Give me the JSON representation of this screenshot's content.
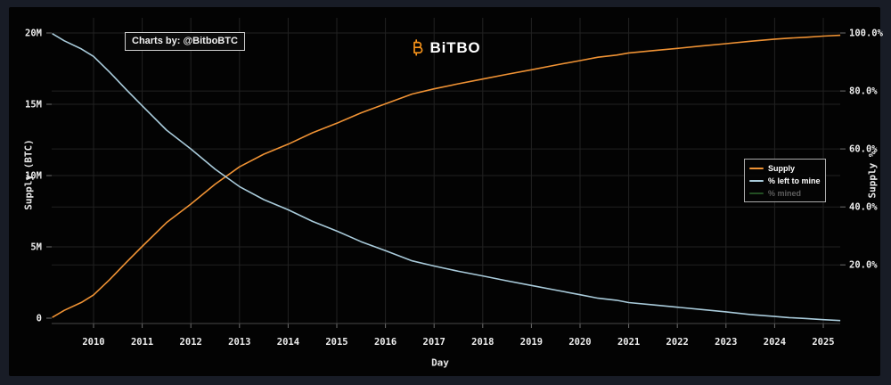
{
  "branding": {
    "logo_text": "BiTBO",
    "logo_icon": "bitcoin-b-icon",
    "credit": "Charts by: @BitboBTC"
  },
  "colors": {
    "background_outer": "#181c26",
    "background_panel": "#030303",
    "accent_orange": "#f7931a",
    "gridline": "#212121",
    "tick_text": "#ececec"
  },
  "chart_data": {
    "type": "line",
    "title": "",
    "xlabel": "Day",
    "ylabel_left": "Supply (BTC)",
    "ylabel_right": "Supply %",
    "grid": true,
    "legend_position": "middle-right",
    "x_range_years": [
      2009.15,
      2025.35
    ],
    "ylim_left_btc_millions": [
      0,
      20
    ],
    "ylim_right_pct": [
      0,
      100
    ],
    "x_tick_labels": [
      "2010",
      "2011",
      "2012",
      "2013",
      "2014",
      "2015",
      "2016",
      "2017",
      "2018",
      "2019",
      "2020",
      "2021",
      "2022",
      "2023",
      "2024",
      "2025"
    ],
    "y_ticks_left": {
      "labels": [
        "0",
        "5M",
        "10M",
        "15M",
        "20M"
      ],
      "values": [
        0,
        5,
        10,
        15,
        20
      ]
    },
    "y_ticks_right": {
      "labels": [
        "20.0%",
        "40.0%",
        "60.0%",
        "80.0%",
        "100.0%"
      ],
      "values": [
        20,
        40,
        60,
        80,
        100
      ]
    },
    "x": [
      2009.15,
      2009.4,
      2009.75,
      2010,
      2010.33,
      2010.67,
      2011,
      2011.5,
      2012,
      2012.5,
      2013,
      2013.5,
      2014,
      2014.5,
      2015,
      2015.5,
      2016,
      2016.55,
      2017,
      2017.5,
      2018,
      2018.5,
      2019,
      2019.5,
      2020,
      2020.37,
      2020.75,
      2021,
      2021.5,
      2022,
      2022.5,
      2023,
      2023.5,
      2024,
      2024.3,
      2024.65,
      2025,
      2025.35
    ],
    "series": [
      {
        "name": "Supply",
        "axis": "left",
        "unit": "million BTC",
        "color": "#ef9234",
        "visible": true,
        "values": [
          0.05,
          0.55,
          1.1,
          1.63,
          2.7,
          3.9,
          5.03,
          6.7,
          8.0,
          9.4,
          10.61,
          11.5,
          12.2,
          13.0,
          13.67,
          14.4,
          15.03,
          15.72,
          16.08,
          16.44,
          16.77,
          17.1,
          17.42,
          17.75,
          18.06,
          18.3,
          18.45,
          18.6,
          18.76,
          18.92,
          19.09,
          19.25,
          19.42,
          19.57,
          19.64,
          19.7,
          19.78,
          19.84
        ]
      },
      {
        "name": "% left to mine",
        "axis": "right",
        "unit": "%",
        "color": "#a9cbdb",
        "visible": true,
        "values": [
          99.8,
          97.3,
          94.5,
          91.9,
          86.5,
          80.5,
          74.9,
          66.5,
          60.0,
          53.0,
          47.0,
          42.5,
          39.0,
          35.0,
          31.7,
          28.0,
          24.9,
          21.4,
          19.6,
          17.8,
          16.2,
          14.5,
          12.9,
          11.3,
          9.7,
          8.5,
          7.8,
          7.0,
          6.2,
          5.4,
          4.6,
          3.8,
          2.9,
          2.2,
          1.8,
          1.5,
          1.1,
          0.8
        ]
      },
      {
        "name": "% mined",
        "axis": "right",
        "unit": "%",
        "color": "#3e8e3e",
        "visible": false,
        "values": []
      }
    ]
  }
}
